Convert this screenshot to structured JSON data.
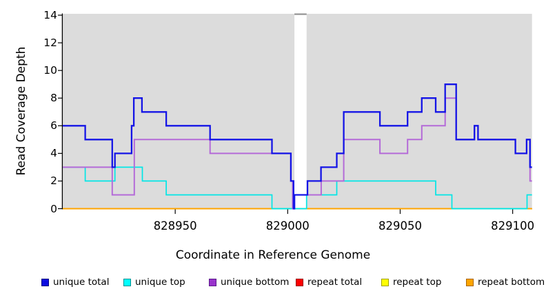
{
  "figure": {
    "y_axis": {
      "label": "Read Coverage Depth",
      "ticks": [
        "0",
        "2",
        "4",
        "6",
        "8",
        "10",
        "12",
        "14"
      ]
    },
    "x_axis": {
      "label": "Coordinate in Reference Genome",
      "ticks": [
        "828950",
        "829000",
        "829050",
        "829100"
      ]
    },
    "legend": {
      "items": [
        {
          "label": "unique total",
          "fill": "#0b0be0",
          "border": "#000080"
        },
        {
          "label": "unique top",
          "fill": "#00ffff",
          "border": "#009090"
        },
        {
          "label": "unique bottom",
          "fill": "#9932cc",
          "border": "#5a1a8a"
        },
        {
          "label": "repeat total",
          "fill": "#ff0000",
          "border": "#990000"
        },
        {
          "label": "repeat top",
          "fill": "#ffff00",
          "border": "#a0a000"
        },
        {
          "label": "repeat bottom",
          "fill": "#ffa500",
          "border": "#a86400"
        }
      ]
    }
  },
  "chart_data": {
    "type": "line",
    "subtype": "step-coverage",
    "title": "",
    "xlabel": "Coordinate in Reference Genome",
    "ylabel": "Read Coverage Depth",
    "xlim": [
      828900,
      829108.6
    ],
    "ylim": [
      0,
      14.1
    ],
    "x_ticks": [
      828950,
      829000,
      829050,
      829100
    ],
    "y_ticks": [
      0,
      2,
      4,
      6,
      8,
      10,
      12,
      14
    ],
    "grid": false,
    "legend_position": "bottom",
    "plot_background": "#dcdcdc",
    "no_data_region": {
      "from": 829003,
      "to": 829008.4,
      "fill": "#ffffff",
      "cap_color": "#8f8f8f"
    },
    "series": [
      {
        "name": "repeat total",
        "color": "#ff0000",
        "width": 1.4,
        "steps": [
          [
            828900,
            0
          ]
        ]
      },
      {
        "name": "repeat top",
        "color": "#ffff00",
        "width": 1.4,
        "steps": [
          [
            828900,
            0
          ]
        ]
      },
      {
        "name": "repeat bottom",
        "color": "#ffa500",
        "width": 2.1,
        "steps": [
          [
            828900,
            0
          ]
        ]
      },
      {
        "name": "unique top at zero over repeat bottom",
        "color": "#7bcf8c",
        "width": 2.1,
        "value": 0,
        "segments": [
          [
            828993,
            829008.4
          ],
          [
            829073,
            829106.4
          ]
        ]
      },
      {
        "name": "unique top",
        "color": "#00e6e6",
        "width": 1.7,
        "steps": [
          [
            828900,
            3
          ],
          [
            828910,
            2
          ],
          [
            828923.2,
            3
          ],
          [
            828935.4,
            2
          ],
          [
            828946,
            1
          ],
          [
            828993,
            0
          ],
          [
            829008.4,
            1
          ],
          [
            829021.8,
            2
          ],
          [
            829065.8,
            1
          ],
          [
            829073,
            0
          ],
          [
            829106.4,
            1
          ]
        ]
      },
      {
        "name": "unique bottom",
        "color": "#b46ad8",
        "width": 2.0,
        "steps": [
          [
            828900,
            3
          ],
          [
            828922,
            1
          ],
          [
            828931.8,
            5
          ],
          [
            828965.5,
            4
          ],
          [
            829001.4,
            2
          ],
          [
            829002.2,
            0
          ],
          [
            829003,
            1
          ],
          [
            829014.9,
            2
          ],
          [
            829024.9,
            5
          ],
          [
            829041,
            4
          ],
          [
            829053.3,
            5
          ],
          [
            829059.6,
            6
          ],
          [
            829070,
            8
          ],
          [
            829074.9,
            5
          ],
          [
            829083,
            6
          ],
          [
            829084.6,
            5
          ],
          [
            829101.2,
            4
          ],
          [
            829106.2,
            5
          ],
          [
            829107.7,
            2
          ]
        ]
      },
      {
        "name": "unique total",
        "color": "#1414e6",
        "width": 2.3,
        "steps": [
          [
            828900,
            6
          ],
          [
            828910,
            5
          ],
          [
            828922,
            3
          ],
          [
            828923.2,
            4
          ],
          [
            828930.6,
            6
          ],
          [
            828931.6,
            8
          ],
          [
            828935.2,
            7
          ],
          [
            828946,
            6
          ],
          [
            828965.5,
            5
          ],
          [
            828993,
            4
          ],
          [
            829001.4,
            2
          ],
          [
            829002.6,
            0
          ],
          [
            829003,
            1
          ],
          [
            829008.8,
            2
          ],
          [
            829014.8,
            3
          ],
          [
            829021.8,
            4
          ],
          [
            829024.9,
            7
          ],
          [
            829041,
            6
          ],
          [
            829053.3,
            7
          ],
          [
            829059.6,
            8
          ],
          [
            829065.8,
            7
          ],
          [
            829070,
            9
          ],
          [
            829074.9,
            5
          ],
          [
            829083,
            6
          ],
          [
            829084.6,
            5
          ],
          [
            829101.2,
            4
          ],
          [
            829106.2,
            5
          ],
          [
            829107.7,
            3
          ]
        ]
      }
    ]
  }
}
